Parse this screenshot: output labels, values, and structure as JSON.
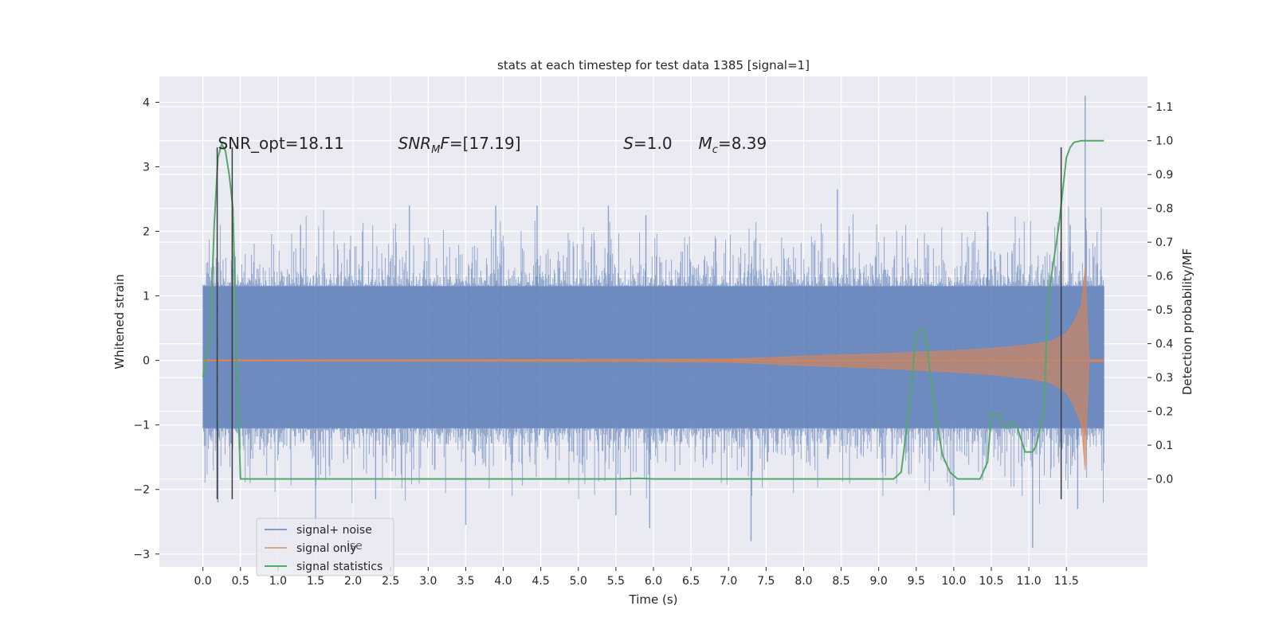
{
  "chart_data": {
    "type": "line",
    "title": "stats at each timestep for test data 1385 [signal=1]",
    "xlabel": "Time (s)",
    "ylabel": "Whitened strain",
    "ylabel_right": "Detection probability/MF",
    "xlim": [
      -0.58,
      12.58
    ],
    "ylim": [
      -3.2,
      4.4
    ],
    "ylim_right": [
      -0.26,
      1.19
    ],
    "x_ticks": [
      "0.0",
      "0.5",
      "1.0",
      "1.5",
      "2.0",
      "2.5",
      "3.0",
      "3.5",
      "4.0",
      "4.5",
      "5.0",
      "5.5",
      "6.0",
      "6.5",
      "7.0",
      "7.5",
      "8.0",
      "8.5",
      "9.0",
      "9.5",
      "10.0",
      "10.5",
      "11.0",
      "11.5"
    ],
    "y_ticks": [
      "−3",
      "−2",
      "−1",
      "0",
      "1",
      "2",
      "3",
      "4"
    ],
    "y_ticks_right": [
      "0.0",
      "0.1",
      "0.2",
      "0.3",
      "0.4",
      "0.5",
      "0.6",
      "0.7",
      "0.8",
      "0.9",
      "1.0",
      "1.1"
    ],
    "grid": true,
    "legend_placement": "lower-left",
    "legend_ghost_text": "ise",
    "annotations": [
      {
        "text": "SNR_opt=18.11",
        "x": 0.2,
        "y": 3.3
      },
      {
        "text": "F=[17.19]",
        "prefix": "SNR",
        "sub": "M",
        "x": 2.6,
        "y": 3.3
      },
      {
        "text": "=1.0",
        "prefix": "S",
        "x": 5.6,
        "y": 3.3
      },
      {
        "text": "=8.39",
        "prefix": "M",
        "sub": "c",
        "x": 6.6,
        "y": 3.3
      }
    ],
    "vlines": [
      {
        "x": 0.19,
        "ymin": -2.15,
        "ymax": 3.3
      },
      {
        "x": 0.39,
        "ymin": -2.15,
        "ymax": 3.3
      },
      {
        "x": 11.43,
        "ymin": -2.15,
        "ymax": 3.3
      }
    ],
    "series": [
      {
        "name": "signal+ noise",
        "color": "#4c72b0",
        "axis": "left",
        "kind": "noise",
        "x_range": [
          0.0,
          12.0
        ],
        "envelope_inner": [
          -1.05,
          1.15
        ],
        "envelope_outer": [
          -2.3,
          2.4
        ],
        "spikes": [
          {
            "x": 0.2,
            "y": -2.2
          },
          {
            "x": 1.3,
            "y": 2.1
          },
          {
            "x": 1.5,
            "y": -2.6
          },
          {
            "x": 2.3,
            "y": -2.15
          },
          {
            "x": 2.75,
            "y": 2.4
          },
          {
            "x": 3.5,
            "y": -2.55
          },
          {
            "x": 3.9,
            "y": 2.4
          },
          {
            "x": 4.45,
            "y": 2.4
          },
          {
            "x": 5.4,
            "y": 2.4
          },
          {
            "x": 5.5,
            "y": -2.4
          },
          {
            "x": 5.9,
            "y": 2.25
          },
          {
            "x": 5.95,
            "y": -2.6
          },
          {
            "x": 7.3,
            "y": -2.8
          },
          {
            "x": 8.45,
            "y": 2.65
          },
          {
            "x": 10.0,
            "y": -2.4
          },
          {
            "x": 10.45,
            "y": 2.3
          },
          {
            "x": 11.05,
            "y": -2.9
          },
          {
            "x": 11.75,
            "y": 4.1
          },
          {
            "x": 11.55,
            "y": 2.1
          },
          {
            "x": 11.65,
            "y": -2.3
          }
        ]
      },
      {
        "name": "signal only",
        "color": "#dd8452",
        "axis": "left",
        "kind": "chirp",
        "x": [
          0.0,
          6.0,
          7.0,
          7.5,
          8.0,
          8.5,
          9.0,
          9.5,
          10.0,
          10.5,
          11.0,
          11.3,
          11.5,
          11.6,
          11.7,
          11.75,
          11.8,
          12.0
        ],
        "amplitude": [
          0.01,
          0.02,
          0.03,
          0.05,
          0.08,
          0.1,
          0.12,
          0.15,
          0.18,
          0.22,
          0.28,
          0.35,
          0.5,
          0.7,
          1.0,
          1.7,
          0.02,
          0.02
        ]
      },
      {
        "name": "signal statistics",
        "color": "#55a868",
        "axis": "right",
        "kind": "line",
        "x": [
          0.0,
          0.1,
          0.15,
          0.2,
          0.25,
          0.3,
          0.35,
          0.4,
          0.45,
          0.5,
          0.6,
          1.0,
          3.0,
          5.0,
          5.5,
          5.8,
          6.0,
          6.5,
          7.0,
          8.0,
          8.5,
          9.0,
          9.2,
          9.3,
          9.4,
          9.5,
          9.55,
          9.6,
          9.65,
          9.75,
          9.85,
          9.95,
          10.05,
          10.2,
          10.35,
          10.45,
          10.5,
          10.55,
          10.6,
          10.65,
          10.7,
          10.75,
          10.85,
          10.95,
          11.05,
          11.1,
          11.2,
          11.25,
          11.3,
          11.4,
          11.45,
          11.5,
          11.55,
          11.6,
          11.7,
          12.0
        ],
        "y": [
          0.3,
          0.43,
          0.75,
          0.95,
          0.99,
          0.97,
          0.9,
          0.8,
          0.35,
          0.0,
          0.0,
          0.0,
          0.0,
          0.0,
          0.0,
          0.002,
          0.0,
          0.0,
          0.0,
          0.0,
          0.0,
          0.0,
          0.0,
          0.02,
          0.2,
          0.43,
          0.44,
          0.44,
          0.38,
          0.2,
          0.07,
          0.02,
          0.0,
          0.0,
          0.0,
          0.05,
          0.19,
          0.19,
          0.19,
          0.16,
          0.15,
          0.17,
          0.15,
          0.08,
          0.08,
          0.1,
          0.2,
          0.5,
          0.6,
          0.75,
          0.85,
          0.95,
          0.98,
          0.995,
          1.0,
          1.0
        ]
      }
    ]
  }
}
